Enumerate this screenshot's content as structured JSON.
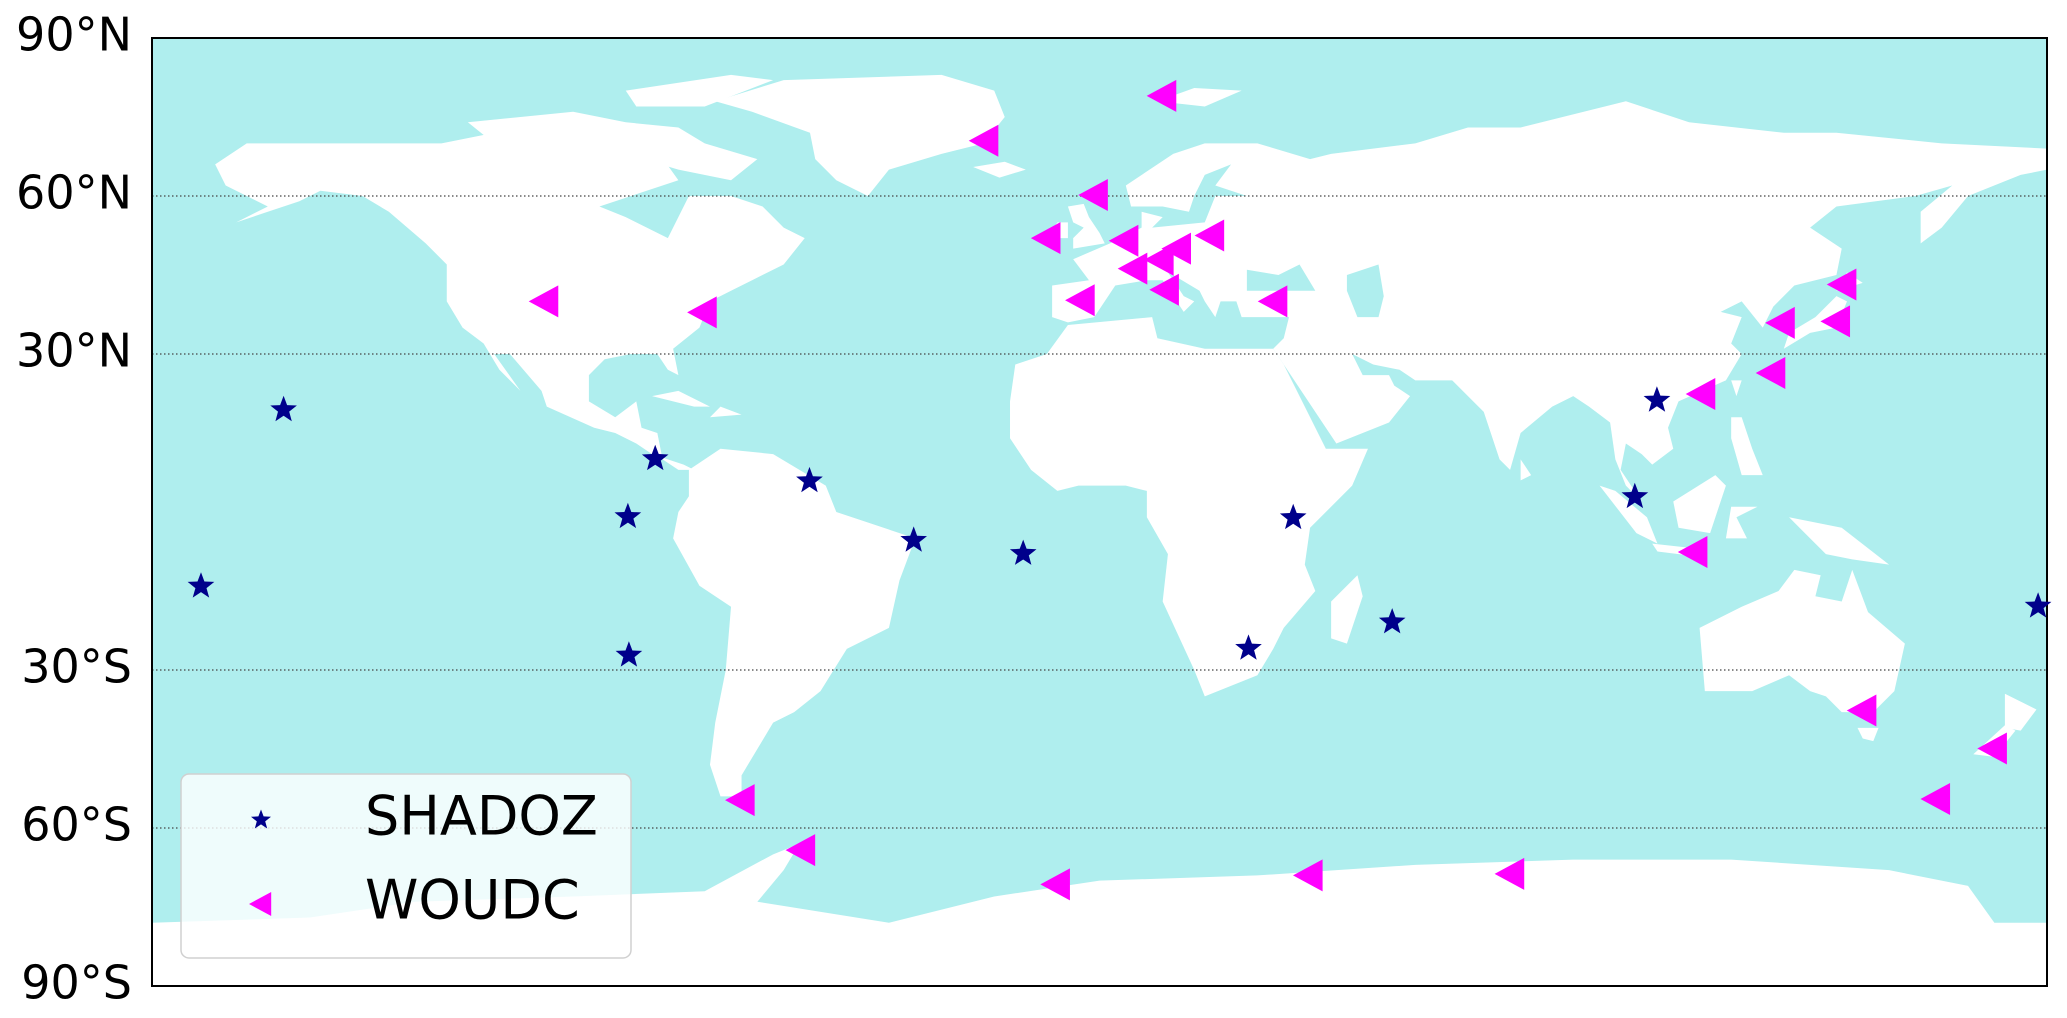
{
  "chart_data": {
    "type": "map",
    "xlim": [
      -180,
      180
    ],
    "ylim": [
      -90,
      90
    ],
    "yticks": [
      {
        "value": 90,
        "label": "90°N"
      },
      {
        "value": 60,
        "label": "60°N"
      },
      {
        "value": 30,
        "label": "30°N"
      },
      {
        "value": -30,
        "label": "30°S"
      },
      {
        "value": -60,
        "label": "60°S"
      },
      {
        "value": -90,
        "label": "90°S"
      }
    ],
    "grid": true,
    "legend": "lower left",
    "series": [
      {
        "name": "SHADOZ",
        "color": "#00008b",
        "marker": "star",
        "x": [
          -155.0,
          -170.7,
          -84.4,
          -89.6,
          -89.4,
          -55.1,
          -35.3,
          -14.5,
          36.8,
          28.3,
          55.6,
          105.9,
          101.7,
          178.3
        ],
        "values": [
          19.4,
          -14.1,
          10.1,
          -0.9,
          -27.2,
          5.9,
          -5.4,
          -7.9,
          -1.1,
          -25.9,
          -20.9,
          21.2,
          2.9,
          -17.9
        ]
      },
      {
        "name": "WOUDC",
        "color": "#ff00ff",
        "marker": "triangle-left",
        "x": [
          12.0,
          -21.8,
          -1.0,
          -10.0,
          4.8,
          14.8,
          21.1,
          11.5,
          6.5,
          12.5,
          -3.5,
          33.1,
          -105.4,
          -75.3,
          141.2,
          129.5,
          140.0,
          127.7,
          114.4,
          112.9,
          145.0,
          169.8,
          159.0,
          -68.1,
          -56.6,
          -8.2,
          39.8,
          78.1
        ],
        "values": [
          79.0,
          70.5,
          60.2,
          52.0,
          51.5,
          50.0,
          52.5,
          47.9,
          46.2,
          42.2,
          40.2,
          40.0,
          40.0,
          37.9,
          43.2,
          35.9,
          36.2,
          26.4,
          22.4,
          -7.6,
          -37.7,
          -44.9,
          -54.5,
          -54.7,
          -64.2,
          -70.7,
          -69.0,
          -68.7
        ]
      }
    ]
  }
}
